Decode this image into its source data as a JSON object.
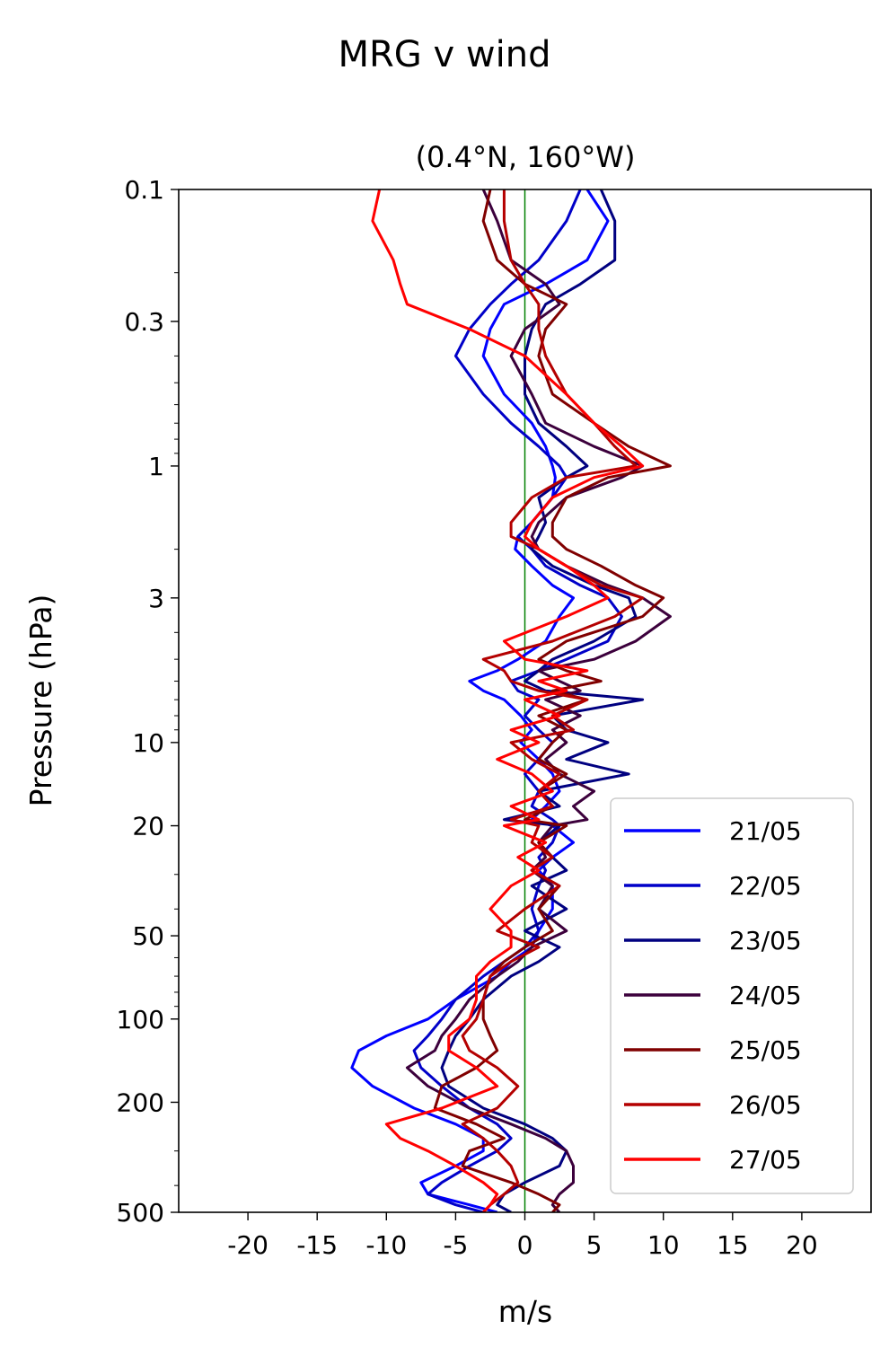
{
  "chart_data": {
    "type": "line",
    "title": "MRG v wind",
    "subtitle": "(0.4°N, 160°W)",
    "xlabel": "m/s",
    "ylabel": "Pressure (hPa)",
    "xlim": [
      -25,
      25
    ],
    "ylim": [
      0.1,
      500
    ],
    "y_scale": "log",
    "y_inverted": true,
    "x_ticks": [
      -20,
      -15,
      -10,
      -5,
      0,
      5,
      10,
      15,
      20
    ],
    "x_tick_labels": [
      "-20",
      "-15",
      "-10",
      "-5",
      "0",
      "5",
      "10",
      "15",
      "20"
    ],
    "y_ticks": [
      0.1,
      0.3,
      1,
      3,
      10,
      20,
      50,
      100,
      200,
      500
    ],
    "y_tick_labels": [
      "0.1",
      "0.3",
      "1",
      "3",
      "10",
      "20",
      "50",
      "100",
      "200",
      "500"
    ],
    "zero_line_color": "#008000",
    "legend_position": "lower-right",
    "series": [
      {
        "name": "21/05",
        "color": "#0000ff",
        "x": [
          4.5,
          6,
          4.5,
          1.5,
          -1.5,
          -2.5,
          -3,
          -1.5,
          0.5,
          1.5,
          2,
          2.2,
          2,
          0.5,
          -0.5,
          -0.7,
          0.5,
          2,
          3.5,
          2.5,
          1.5,
          -0.5,
          -2,
          -4,
          -3,
          -1.5,
          -0.3,
          0.5,
          -0.3,
          1,
          2,
          2.5,
          1.5,
          0.5,
          2,
          3.5,
          2,
          1,
          2,
          2,
          1,
          0.5,
          -1,
          -2,
          -5,
          -7,
          -10,
          -12,
          -12.5,
          -11,
          -8,
          -5,
          -3,
          -3,
          -5,
          -7.5,
          -7,
          -4,
          -2
        ],
        "y": [
          0.1,
          0.13,
          0.18,
          0.22,
          0.26,
          0.32,
          0.4,
          0.55,
          0.7,
          0.85,
          1.0,
          1.1,
          1.3,
          1.6,
          1.8,
          2.0,
          2.3,
          2.7,
          3.0,
          3.5,
          4.3,
          5.0,
          5.5,
          6.0,
          6.5,
          7.0,
          8.0,
          9.0,
          10,
          11.5,
          13,
          15,
          17,
          19,
          20,
          23,
          26,
          29,
          33,
          40,
          48,
          55,
          62,
          70,
          85,
          100,
          115,
          130,
          150,
          175,
          210,
          240,
          270,
          300,
          340,
          390,
          430,
          470,
          500
        ]
      },
      {
        "name": "22/05",
        "color": "#0000c8",
        "x": [
          4,
          3,
          1,
          -1,
          -2.5,
          -4,
          -5,
          -3,
          -1,
          1,
          2.5,
          3,
          2,
          0.5,
          -0.5,
          0.5,
          1.5,
          4,
          6,
          7,
          6,
          3,
          1,
          -1,
          -0.5,
          1,
          0,
          1,
          2,
          1,
          0,
          1,
          0.5,
          2,
          2.5,
          2,
          1,
          1.5,
          1,
          0.5,
          1,
          0,
          -1.5,
          -3,
          -5,
          -6,
          -7,
          -8,
          -7.5,
          -6,
          -4,
          -2,
          -1,
          -2,
          -4,
          -6,
          -7,
          -5,
          -3
        ],
        "y": [
          0.1,
          0.13,
          0.18,
          0.22,
          0.26,
          0.32,
          0.4,
          0.55,
          0.7,
          0.85,
          1.0,
          1.1,
          1.3,
          1.6,
          1.8,
          2.0,
          2.3,
          2.7,
          3.0,
          3.5,
          4.3,
          5.0,
          5.5,
          6.0,
          6.5,
          7.0,
          8.0,
          9.0,
          10,
          11.5,
          13,
          15,
          17,
          19,
          20,
          23,
          26,
          29,
          33,
          40,
          48,
          55,
          62,
          70,
          85,
          100,
          115,
          130,
          150,
          175,
          210,
          240,
          270,
          300,
          340,
          390,
          430,
          470,
          500
        ]
      },
      {
        "name": "23/05",
        "color": "#000080",
        "x": [
          5.5,
          6.5,
          6.5,
          4,
          1.5,
          0.5,
          0,
          0,
          1,
          3,
          4.5,
          3,
          1,
          1.5,
          1,
          0.5,
          2,
          5,
          7.5,
          8,
          5,
          2,
          1,
          0,
          1.5,
          8.5,
          2,
          3,
          6,
          3,
          7.5,
          1,
          2.5,
          -1.5,
          2.5,
          1,
          2,
          3,
          0.5,
          3,
          0,
          2.5,
          1,
          -1,
          -3,
          -4,
          -5,
          -5.5,
          -6,
          -5.5,
          -3,
          0,
          2,
          3,
          2.5,
          0,
          -1.5,
          -2,
          -1
        ],
        "y": [
          0.1,
          0.13,
          0.18,
          0.22,
          0.26,
          0.32,
          0.4,
          0.55,
          0.7,
          0.85,
          1.0,
          1.1,
          1.3,
          1.6,
          1.8,
          2.0,
          2.3,
          2.7,
          3.0,
          3.5,
          4.3,
          5.0,
          5.5,
          6.0,
          6.5,
          7.0,
          8.0,
          9.0,
          10,
          11.5,
          13,
          15,
          17,
          19,
          20,
          23,
          26,
          29,
          33,
          40,
          48,
          55,
          62,
          70,
          85,
          100,
          115,
          130,
          150,
          175,
          210,
          240,
          270,
          300,
          340,
          390,
          430,
          470,
          500
        ]
      },
      {
        "name": "24/05",
        "color": "#3c003c",
        "x": [
          -3,
          -2,
          -1,
          1.5,
          2.5,
          0,
          -1,
          0.5,
          1.5,
          5,
          8.5,
          7,
          3,
          1,
          0.5,
          1,
          3,
          6,
          8.5,
          10.5,
          8,
          5,
          1,
          2.5,
          4,
          1.5,
          4,
          2,
          3,
          1.5,
          2.5,
          5,
          3.5,
          4.5,
          2,
          1,
          1.5,
          0.5,
          2,
          1,
          3,
          0.5,
          -0.5,
          -2,
          -4,
          -5,
          -6,
          -6.5,
          -8.5,
          -7,
          -4,
          -1,
          1.5,
          3,
          3.5,
          3.5,
          2.5,
          2,
          2.5
        ],
        "y": [
          0.1,
          0.13,
          0.18,
          0.22,
          0.26,
          0.32,
          0.4,
          0.55,
          0.7,
          0.85,
          1.0,
          1.1,
          1.3,
          1.6,
          1.8,
          2.0,
          2.3,
          2.7,
          3.0,
          3.5,
          4.3,
          5.0,
          5.5,
          6.0,
          6.5,
          7.0,
          8.0,
          9.0,
          10,
          11.5,
          13,
          15,
          17,
          19,
          20,
          23,
          26,
          29,
          33,
          40,
          48,
          55,
          62,
          70,
          85,
          100,
          115,
          130,
          150,
          175,
          210,
          240,
          270,
          300,
          340,
          390,
          430,
          470,
          500
        ]
      },
      {
        "name": "25/05",
        "color": "#800000",
        "x": [
          -2.5,
          -3,
          -2,
          0,
          3,
          1.5,
          1,
          2,
          5,
          7.5,
          10.5,
          6,
          3,
          2,
          2,
          3,
          5.5,
          8,
          10,
          8.5,
          3,
          1,
          3,
          5.5,
          2,
          4.5,
          1,
          3,
          2,
          1,
          3,
          1,
          2,
          0,
          3,
          1,
          2,
          0.5,
          2.5,
          1,
          2,
          0,
          -1.5,
          -2.5,
          -3,
          -3,
          -2.5,
          -2,
          -3.5,
          -6,
          -6.5,
          -3.5,
          -1.5,
          -4,
          -4.5,
          -1,
          1,
          2.5,
          2
        ],
        "y": [
          0.1,
          0.13,
          0.18,
          0.22,
          0.26,
          0.32,
          0.4,
          0.55,
          0.7,
          0.85,
          1.0,
          1.1,
          1.3,
          1.6,
          1.8,
          2.0,
          2.3,
          2.7,
          3.0,
          3.5,
          4.3,
          5.0,
          5.5,
          6.0,
          6.5,
          7.0,
          8.0,
          9.0,
          10,
          11.5,
          13,
          15,
          17,
          19,
          20,
          23,
          26,
          29,
          33,
          40,
          48,
          55,
          62,
          70,
          85,
          100,
          115,
          130,
          150,
          175,
          210,
          240,
          270,
          300,
          340,
          390,
          430,
          470,
          500
        ]
      },
      {
        "name": "26/05",
        "color": "#b40000",
        "x": [
          -1.5,
          -1.5,
          -1,
          0,
          1,
          1,
          1.5,
          3,
          5,
          6.5,
          8,
          3,
          0.5,
          -1,
          -1,
          1,
          3,
          5.5,
          8.5,
          6.5,
          2,
          -3,
          -1.5,
          -1,
          1,
          4.5,
          2,
          3.5,
          -1,
          0.5,
          2.5,
          1,
          2,
          -1,
          1,
          0.5,
          2,
          0.5,
          2.5,
          0,
          -2,
          1,
          -1,
          -2.5,
          -3,
          -3.5,
          -4.5,
          -4,
          -2,
          -0.5,
          -2,
          -4.5,
          -3,
          -2,
          -1,
          -0.5,
          -1.5,
          -2.5,
          -3
        ],
        "y": [
          0.1,
          0.13,
          0.18,
          0.22,
          0.26,
          0.32,
          0.4,
          0.55,
          0.7,
          0.85,
          1.0,
          1.1,
          1.3,
          1.6,
          1.8,
          2.0,
          2.3,
          2.7,
          3.0,
          3.5,
          4.3,
          5.0,
          5.5,
          6.0,
          6.5,
          7.0,
          8.0,
          9.0,
          10,
          11.5,
          13,
          15,
          17,
          19,
          20,
          23,
          26,
          29,
          33,
          40,
          48,
          55,
          62,
          70,
          85,
          100,
          115,
          130,
          150,
          175,
          210,
          240,
          270,
          300,
          340,
          390,
          430,
          470,
          500
        ]
      },
      {
        "name": "27/05",
        "color": "#ff0000",
        "x": [
          -10.5,
          -11,
          -9.5,
          -9,
          -8.5,
          -4,
          0,
          3,
          5,
          7,
          8.5,
          5,
          2,
          0.5,
          0,
          1,
          3,
          5,
          6,
          3,
          -1.5,
          0,
          4.5,
          1,
          3,
          0,
          2.5,
          -1,
          1,
          -2,
          0.5,
          2,
          -1,
          1,
          -1.5,
          1.5,
          -0.5,
          1,
          -1,
          -2.5,
          -1,
          -1,
          -2.5,
          -3.5,
          -3.5,
          -4,
          -5.5,
          -5.5,
          -3.5,
          -2,
          -6,
          -10,
          -9,
          -7,
          -5,
          -3,
          -2,
          -2.5,
          -3
        ],
        "y": [
          0.1,
          0.13,
          0.18,
          0.22,
          0.26,
          0.32,
          0.4,
          0.55,
          0.7,
          0.85,
          1.0,
          1.1,
          1.3,
          1.6,
          1.8,
          2.0,
          2.3,
          2.7,
          3.0,
          3.5,
          4.3,
          5.0,
          5.5,
          6.0,
          6.5,
          7.0,
          8.0,
          9.0,
          10,
          11.5,
          13,
          15,
          17,
          19,
          20,
          23,
          26,
          29,
          33,
          40,
          48,
          55,
          62,
          70,
          85,
          100,
          115,
          130,
          150,
          175,
          210,
          240,
          270,
          300,
          340,
          390,
          430,
          470,
          500
        ]
      }
    ]
  }
}
